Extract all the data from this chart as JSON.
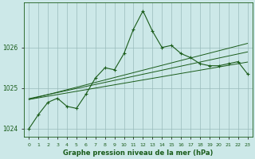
{
  "hours": [
    0,
    1,
    2,
    3,
    4,
    5,
    6,
    7,
    8,
    9,
    10,
    11,
    12,
    13,
    14,
    15,
    16,
    17,
    18,
    19,
    20,
    21,
    22,
    23
  ],
  "pressure_main": [
    1024.0,
    1024.35,
    1024.65,
    1024.75,
    1024.55,
    1024.5,
    1024.85,
    1025.25,
    1025.5,
    1025.45,
    1025.85,
    1026.45,
    1026.9,
    1026.4,
    1026.0,
    1026.05,
    1025.85,
    1025.75,
    1025.6,
    1025.55,
    1025.55,
    1025.6,
    1025.65,
    1025.35
  ],
  "trend_line1": [
    1024.72,
    1024.76,
    1024.8,
    1024.84,
    1024.88,
    1024.92,
    1024.96,
    1025.0,
    1025.04,
    1025.08,
    1025.12,
    1025.16,
    1025.2,
    1025.24,
    1025.28,
    1025.32,
    1025.36,
    1025.4,
    1025.44,
    1025.48,
    1025.52,
    1025.56,
    1025.6,
    1025.64
  ],
  "trend_line2": [
    1024.74,
    1024.79,
    1024.84,
    1024.89,
    1024.94,
    1024.99,
    1025.04,
    1025.09,
    1025.14,
    1025.19,
    1025.24,
    1025.29,
    1025.34,
    1025.39,
    1025.44,
    1025.49,
    1025.54,
    1025.59,
    1025.64,
    1025.69,
    1025.74,
    1025.79,
    1025.84,
    1025.89
  ],
  "trend_line3": [
    1024.72,
    1024.78,
    1024.84,
    1024.9,
    1024.96,
    1025.02,
    1025.08,
    1025.14,
    1025.2,
    1025.26,
    1025.32,
    1025.38,
    1025.44,
    1025.5,
    1025.56,
    1025.62,
    1025.68,
    1025.74,
    1025.8,
    1025.86,
    1025.92,
    1025.98,
    1026.04,
    1026.1
  ],
  "bg_color": "#cce8e8",
  "line_color": "#1a5c1a",
  "grid_color": "#99bbbb",
  "text_color": "#1a5c1a",
  "yticks": [
    1024,
    1025,
    1026
  ],
  "xlabel_text": "Graphe pression niveau de la mer (hPa)",
  "ylim": [
    1023.8,
    1027.1
  ],
  "xlim": [
    -0.5,
    23.5
  ]
}
